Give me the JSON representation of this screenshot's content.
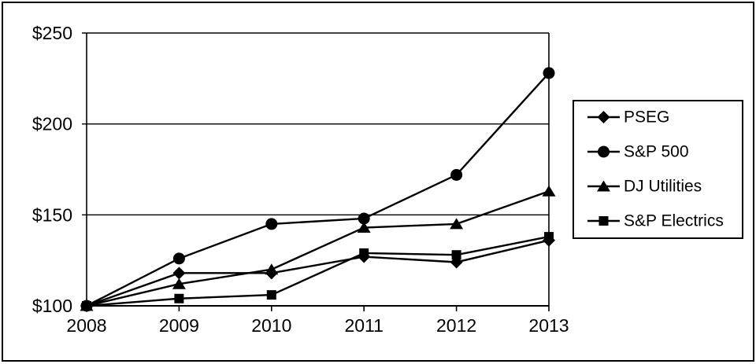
{
  "page": {
    "background_color": "#ffffff",
    "frame_color": "#000000",
    "line_color": "#000000"
  },
  "chart_data": {
    "type": "line",
    "title": "",
    "xlabel": "",
    "ylabel": "",
    "categories": [
      "2008",
      "2009",
      "2010",
      "2011",
      "2012",
      "2013"
    ],
    "series": [
      {
        "name": "PSEG",
        "marker": "diamond",
        "color": "#000000",
        "values": [
          100,
          118,
          118,
          127,
          124,
          136
        ]
      },
      {
        "name": "S&P 500",
        "marker": "circle",
        "color": "#000000",
        "values": [
          100,
          126,
          145,
          148,
          172,
          228
        ]
      },
      {
        "name": "DJ Utilities",
        "marker": "triangle",
        "color": "#000000",
        "values": [
          100,
          112,
          120,
          143,
          145,
          163
        ]
      },
      {
        "name": "S&P Electrics",
        "marker": "square",
        "color": "#000000",
        "values": [
          100,
          104,
          106,
          129,
          128,
          138
        ]
      }
    ],
    "ylim": [
      100,
      250
    ],
    "y_ticks": [
      100,
      150,
      200,
      250
    ],
    "y_tick_labels": [
      "$100",
      "$150",
      "$200",
      "$250"
    ],
    "grid": true,
    "legend_position": "right"
  }
}
